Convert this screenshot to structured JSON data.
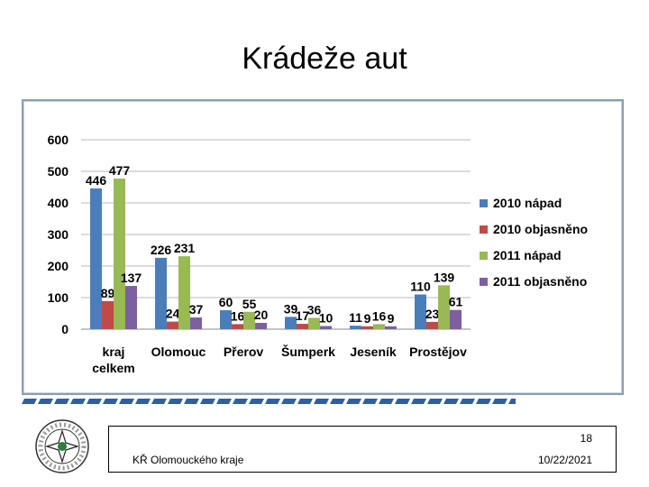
{
  "slide": {
    "title": "Krádeže aut"
  },
  "footer": {
    "page": "18",
    "org": "KŘ Olomouckého kraje",
    "date": "10/22/2021"
  },
  "chart_data": {
    "type": "bar",
    "title": "",
    "xlabel": "",
    "ylabel": "",
    "ylim": [
      0,
      600
    ],
    "yticks": [
      0,
      100,
      200,
      300,
      400,
      500,
      600
    ],
    "grid": true,
    "legend": "right",
    "categories": [
      [
        "kraj",
        "celkem"
      ],
      [
        "Olomouc"
      ],
      [
        "Přerov"
      ],
      [
        "Šumperk"
      ],
      [
        "Jeseník"
      ],
      [
        "Prostějov"
      ]
    ],
    "series": [
      {
        "name": "2010 nápad",
        "color": "#4a7ebb",
        "values": [
          446,
          226,
          60,
          39,
          11,
          110
        ]
      },
      {
        "name": "2010 objasněno",
        "color": "#be4b48",
        "values": [
          89,
          24,
          16,
          17,
          9,
          23
        ]
      },
      {
        "name": "2011 nápad",
        "color": "#98b954",
        "values": [
          477,
          231,
          55,
          36,
          16,
          139
        ]
      },
      {
        "name": "2011 objasněno",
        "color": "#7d60a0",
        "values": [
          137,
          37,
          20,
          10,
          9,
          61
        ]
      }
    ]
  }
}
